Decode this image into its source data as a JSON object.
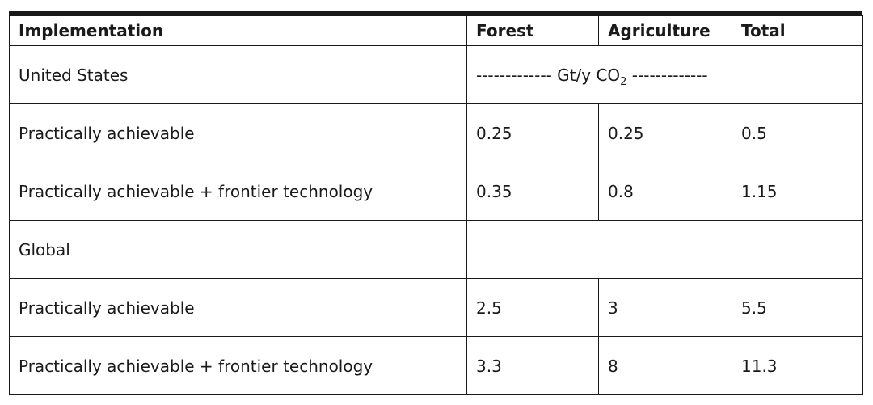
{
  "table": {
    "headers": {
      "implementation": "Implementation",
      "forest": "Forest",
      "agriculture": "Agriculture",
      "total": "Total"
    },
    "sections": [
      {
        "label": "United States",
        "unit_prefix": "------------- Gt/y CO",
        "unit_subscript": "2",
        "unit_suffix": " -------------",
        "rows": [
          {
            "implementation": "Practically achievable",
            "forest": "0.25",
            "agriculture": "0.25",
            "total": "0.5"
          },
          {
            "implementation": "Practically achievable + frontier technology",
            "forest": "0.35",
            "agriculture": "0.8",
            "total": "1.15"
          }
        ]
      },
      {
        "label": "Global",
        "unit_prefix": "",
        "unit_subscript": "",
        "unit_suffix": "",
        "rows": [
          {
            "implementation": "Practically achievable",
            "forest": "2.5",
            "agriculture": "3",
            "total": "5.5"
          },
          {
            "implementation": "Practically achievable + frontier technology",
            "forest": "3.3",
            "agriculture": "8",
            "total": "11.3"
          }
        ]
      }
    ]
  }
}
